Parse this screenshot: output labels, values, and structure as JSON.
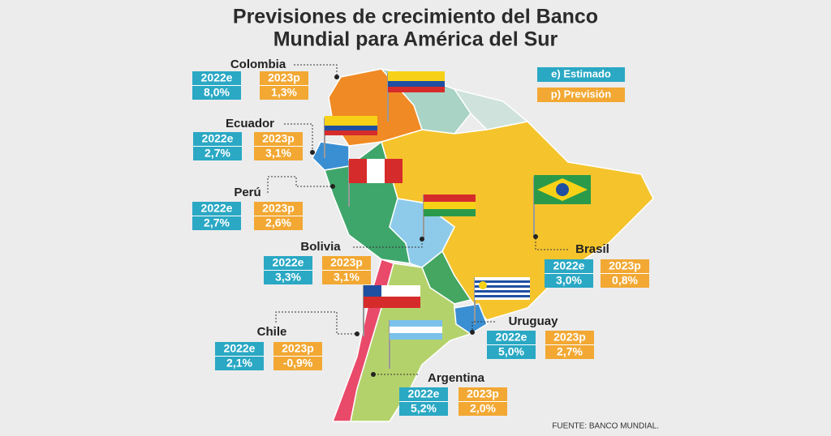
{
  "header": {
    "title_lines": [
      "Previsiones de crecimiento del Banco",
      "Mundial para América del Sur"
    ]
  },
  "legend": [
    {
      "label": "e) Estimado"
    },
    {
      "label": "p) Previsión"
    }
  ],
  "countries": [
    {
      "name": "Colombia",
      "estimate_label": "2022e",
      "estimate": "8,0%",
      "forecast_label": "2023p",
      "forecast": "1,3%"
    },
    {
      "name": "Ecuador",
      "estimate_label": "2022e",
      "estimate": "2,7%",
      "forecast_label": "2023p",
      "forecast": "3,1%"
    },
    {
      "name": "Perú",
      "estimate_label": "2022e",
      "estimate": "2,7%",
      "forecast_label": "2023p",
      "forecast": "2,6%"
    },
    {
      "name": "Bolivia",
      "estimate_label": "2022e",
      "estimate": "3,3%",
      "forecast_label": "2023p",
      "forecast": "3,1%"
    },
    {
      "name": "Brasil",
      "estimate_label": "2022e",
      "estimate": "3,0%",
      "forecast_label": "2023p",
      "forecast": "0,8%"
    },
    {
      "name": "Uruguay",
      "estimate_label": "2022e",
      "estimate": "5,0%",
      "forecast_label": "2023p",
      "forecast": "2,7%"
    },
    {
      "name": "Chile",
      "estimate_label": "2022e",
      "estimate": "2,1%",
      "forecast_label": "2023p",
      "forecast": "-0,9%"
    },
    {
      "name": "Argentina",
      "estimate_label": "2022e",
      "estimate": "5,2%",
      "forecast_label": "2023p",
      "forecast": "2,0%"
    }
  ],
  "source": "FUENTE: BANCO MUNDIAL."
}
